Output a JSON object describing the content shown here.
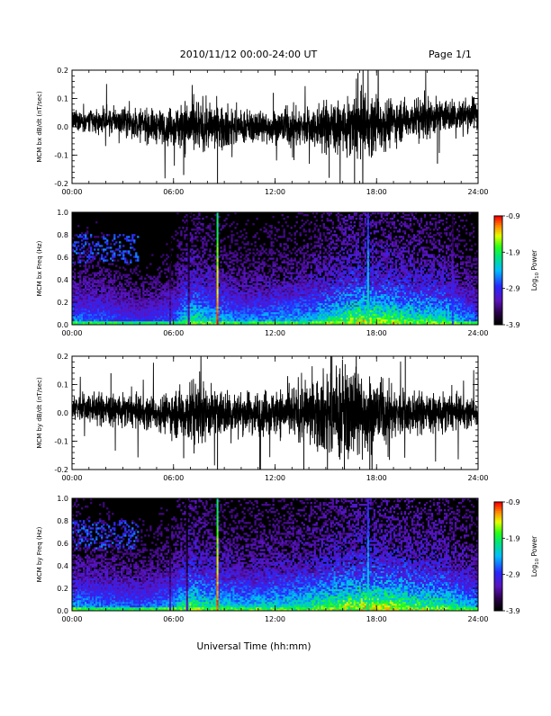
{
  "header": {
    "title": "2010/11/12  00:00-24:00 UT",
    "page": "Page 1/1"
  },
  "x_title": "Universal Time (hh:mm)",
  "colorbar": {
    "label": "Log",
    "label_sub": "10",
    "label_tail": " Power",
    "ticks": [
      "-0.9",
      "-1.9",
      "-2.9",
      "-3.9"
    ]
  },
  "chart_data": [
    {
      "type": "line",
      "ylabel": "MCM bx dB/dt (nT/sec)",
      "xlim": [
        0,
        24
      ],
      "ylim": [
        -0.2,
        0.2
      ],
      "xticks": [
        "00:00",
        "06:00",
        "12:00",
        "18:00",
        "24:00"
      ],
      "yticks": [
        "0.2",
        "0.1",
        "0.0",
        "-0.1",
        "-0.2"
      ],
      "envelope": {
        "x": [
          0,
          1,
          2,
          3,
          4,
          5,
          6,
          7,
          8,
          9,
          10,
          11,
          12,
          13,
          14,
          15,
          16,
          17,
          18,
          19,
          20,
          21,
          22,
          23,
          24
        ],
        "amplitude": [
          0.03,
          0.04,
          0.04,
          0.04,
          0.05,
          0.05,
          0.06,
          0.09,
          0.07,
          0.07,
          0.05,
          0.05,
          0.05,
          0.06,
          0.06,
          0.08,
          0.08,
          0.1,
          0.09,
          0.07,
          0.06,
          0.06,
          0.05,
          0.05,
          0.05
        ],
        "offset": [
          0.02,
          0.02,
          0.02,
          0.02,
          0.01,
          0.0,
          0.0,
          0.0,
          0.0,
          0.0,
          0.0,
          0.0,
          0.0,
          0.0,
          0.0,
          0.0,
          0.0,
          0.0,
          0.01,
          0.02,
          0.03,
          0.03,
          0.04,
          0.04,
          0.05
        ]
      },
      "spikes": [
        {
          "x": 6.6,
          "y": -0.17
        },
        {
          "x": 8.6,
          "y": -0.21
        },
        {
          "x": 15.2,
          "y": -0.18
        },
        {
          "x": 16.7,
          "y": -0.21
        },
        {
          "x": 17.2,
          "y": 0.2
        },
        {
          "x": 16.9,
          "y": 0.19
        },
        {
          "x": 21.6,
          "y": -0.13
        },
        {
          "x": 11.9,
          "y": 0.12
        }
      ]
    },
    {
      "type": "heatmap",
      "ylabel": "MCM bx Freq (Hz)",
      "xlim": [
        0,
        24
      ],
      "ylim": [
        0,
        1.0
      ],
      "xticks": [
        "00:00",
        "06:00",
        "12:00",
        "18:00",
        "24:00"
      ],
      "yticks": [
        "1.0",
        "0.8",
        "0.6",
        "0.4",
        "0.2",
        "0.0"
      ],
      "zlim": [
        -3.9,
        -0.9
      ],
      "bright_lines": [
        {
          "x": 8.6,
          "level": -1.0
        },
        {
          "x": 17.5,
          "level": -1.9
        },
        {
          "x": 22.5,
          "level": -2.7
        },
        {
          "x": 5.8,
          "level": -3.2
        },
        {
          "x": 6.9,
          "level": -3.2
        }
      ],
      "activity": {
        "x": [
          0,
          2,
          4,
          6,
          7,
          8,
          10,
          12,
          14,
          16,
          17,
          18,
          20,
          22,
          24
        ],
        "level": [
          0.5,
          0.45,
          0.35,
          0.45,
          0.75,
          0.65,
          0.5,
          0.55,
          0.6,
          0.8,
          0.9,
          0.85,
          0.75,
          0.7,
          0.45
        ]
      }
    },
    {
      "type": "line",
      "ylabel": "MCM by dB/dt (nT/sec)",
      "xlim": [
        0,
        24
      ],
      "ylim": [
        -0.2,
        0.2
      ],
      "xticks": [
        "00:00",
        "06:00",
        "12:00",
        "18:00",
        "24:00"
      ],
      "yticks": [
        "0.2",
        "0.1",
        "0.0",
        "-0.1",
        "-0.2"
      ],
      "envelope": {
        "x": [
          0,
          1,
          2,
          3,
          4,
          5,
          6,
          7,
          8,
          9,
          10,
          11,
          12,
          13,
          14,
          15,
          16,
          17,
          18,
          19,
          20,
          21,
          22,
          23,
          24
        ],
        "amplitude": [
          0.04,
          0.05,
          0.05,
          0.05,
          0.05,
          0.05,
          0.07,
          0.1,
          0.08,
          0.07,
          0.06,
          0.07,
          0.07,
          0.08,
          0.1,
          0.13,
          0.15,
          0.14,
          0.1,
          0.08,
          0.07,
          0.06,
          0.06,
          0.05,
          0.04
        ],
        "offset": [
          0.02,
          0.02,
          0.01,
          0.01,
          0.0,
          0.0,
          0.0,
          0.0,
          0.0,
          0.0,
          0.0,
          0.0,
          0.0,
          0.0,
          0.0,
          0.0,
          0.0,
          0.0,
          0.0,
          0.0,
          0.0,
          0.0,
          0.0,
          0.0,
          0.0
        ]
      },
      "spikes": [
        {
          "x": 2.3,
          "y": 0.14
        },
        {
          "x": 6.6,
          "y": -0.16
        },
        {
          "x": 8.6,
          "y": -0.21
        },
        {
          "x": 11.1,
          "y": -0.2
        },
        {
          "x": 13.7,
          "y": -0.21
        },
        {
          "x": 15.3,
          "y": 0.21
        },
        {
          "x": 16.1,
          "y": -0.21
        },
        {
          "x": 16.8,
          "y": 0.21
        },
        {
          "x": 17.6,
          "y": -0.2
        },
        {
          "x": 19.7,
          "y": 0.21
        }
      ]
    },
    {
      "type": "heatmap",
      "ylabel": "MCM by Freq (Hz)",
      "xlim": [
        0,
        24
      ],
      "ylim": [
        0,
        1.0
      ],
      "xticks": [
        "00:00",
        "06:00",
        "12:00",
        "18:00",
        "24:00"
      ],
      "yticks": [
        "1.0",
        "0.8",
        "0.6",
        "0.4",
        "0.2",
        "0.0"
      ],
      "zlim": [
        -3.9,
        -0.9
      ],
      "bright_lines": [
        {
          "x": 8.6,
          "level": -1.0
        },
        {
          "x": 17.5,
          "level": -2.0
        },
        {
          "x": 5.8,
          "level": -3.2
        },
        {
          "x": 6.8,
          "level": -3.2
        }
      ],
      "activity": {
        "x": [
          0,
          2,
          4,
          6,
          7,
          8,
          10,
          12,
          14,
          16,
          17,
          18,
          20,
          22,
          24
        ],
        "level": [
          0.55,
          0.5,
          0.45,
          0.55,
          0.8,
          0.7,
          0.6,
          0.65,
          0.7,
          0.85,
          0.9,
          0.9,
          0.8,
          0.75,
          0.55
        ]
      }
    }
  ]
}
